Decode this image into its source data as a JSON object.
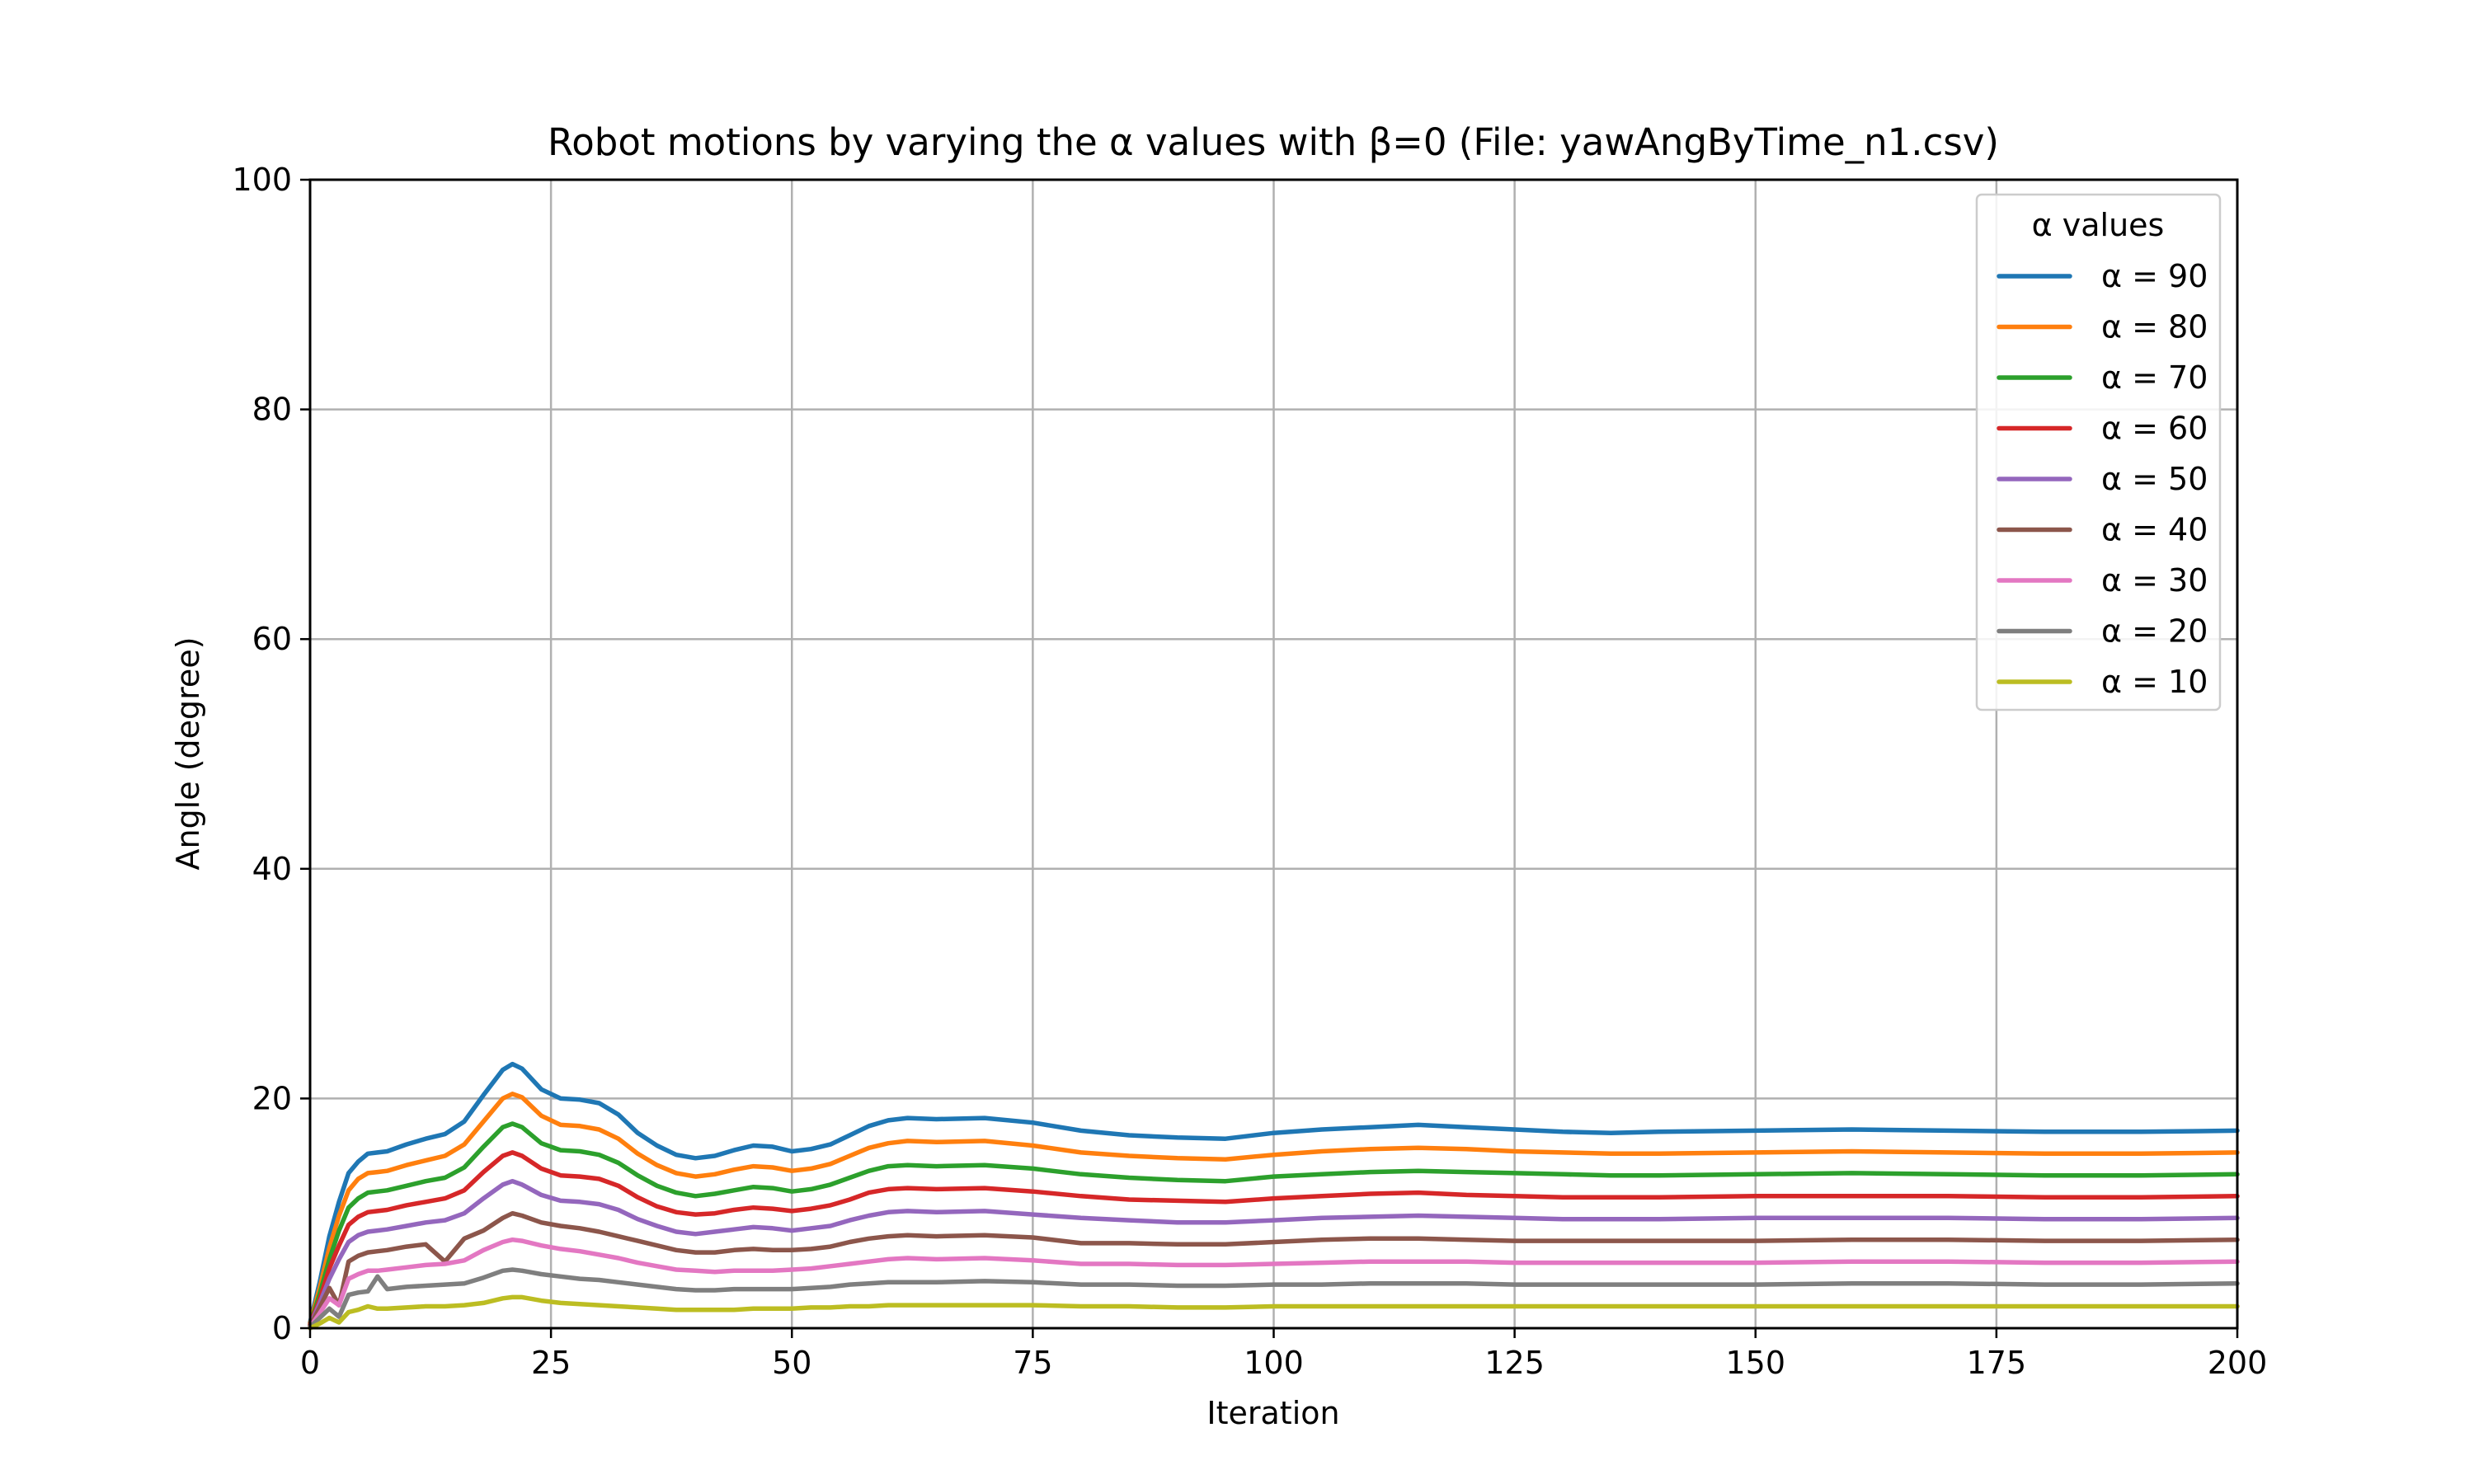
{
  "chart_data": {
    "type": "line",
    "title": "Robot motions by varying the α values with β=0 (File: yawAngByTime_n1.csv)",
    "xlabel": "Iteration",
    "ylabel": "Angle (degree)",
    "xlim": [
      0,
      200
    ],
    "ylim": [
      0,
      100
    ],
    "xticks": [
      0,
      25,
      50,
      75,
      100,
      125,
      150,
      175,
      200
    ],
    "yticks": [
      0,
      20,
      40,
      60,
      80,
      100
    ],
    "grid": true,
    "legend": {
      "title": "α values",
      "placement": "top-right"
    },
    "x": [
      0,
      1,
      2,
      3,
      4,
      5,
      6,
      7,
      8,
      10,
      12,
      14,
      16,
      18,
      20,
      21,
      22,
      24,
      26,
      28,
      30,
      32,
      34,
      36,
      38,
      40,
      42,
      44,
      46,
      48,
      50,
      52,
      54,
      56,
      58,
      60,
      62,
      65,
      70,
      75,
      80,
      85,
      90,
      95,
      100,
      105,
      110,
      115,
      120,
      125,
      130,
      135,
      140,
      150,
      160,
      170,
      180,
      190,
      200
    ],
    "series": [
      {
        "name": "α = 90",
        "color": "#1f77b4",
        "values": [
          0.5,
          4.0,
          8.0,
          11.0,
          13.5,
          14.5,
          15.2,
          15.3,
          15.4,
          16.0,
          16.5,
          16.9,
          18.0,
          20.3,
          22.5,
          23.0,
          22.6,
          20.8,
          20.0,
          19.9,
          19.6,
          18.6,
          17.0,
          15.9,
          15.1,
          14.8,
          15.0,
          15.5,
          15.9,
          15.8,
          15.4,
          15.6,
          16.0,
          16.8,
          17.6,
          18.1,
          18.3,
          18.2,
          18.3,
          17.9,
          17.2,
          16.8,
          16.6,
          16.5,
          17.0,
          17.3,
          17.5,
          17.7,
          17.5,
          17.3,
          17.1,
          17.0,
          17.1,
          17.2,
          17.3,
          17.2,
          17.1,
          17.1,
          17.2
        ]
      },
      {
        "name": "α = 80",
        "color": "#ff7f0e",
        "values": [
          0.4,
          3.5,
          7.0,
          9.8,
          12.0,
          13.0,
          13.5,
          13.6,
          13.7,
          14.2,
          14.6,
          15.0,
          16.0,
          18.0,
          20.0,
          20.4,
          20.1,
          18.5,
          17.7,
          17.6,
          17.3,
          16.5,
          15.2,
          14.2,
          13.5,
          13.2,
          13.4,
          13.8,
          14.1,
          14.0,
          13.7,
          13.9,
          14.3,
          15.0,
          15.7,
          16.1,
          16.3,
          16.2,
          16.3,
          15.9,
          15.3,
          15.0,
          14.8,
          14.7,
          15.1,
          15.4,
          15.6,
          15.7,
          15.6,
          15.4,
          15.3,
          15.2,
          15.2,
          15.3,
          15.4,
          15.3,
          15.2,
          15.2,
          15.3
        ]
      },
      {
        "name": "α = 70",
        "color": "#2ca02c",
        "values": [
          0.3,
          3.0,
          6.0,
          8.5,
          10.5,
          11.3,
          11.8,
          11.9,
          12.0,
          12.4,
          12.8,
          13.1,
          14.0,
          15.8,
          17.5,
          17.8,
          17.5,
          16.1,
          15.5,
          15.4,
          15.1,
          14.4,
          13.3,
          12.4,
          11.8,
          11.5,
          11.7,
          12.0,
          12.3,
          12.2,
          11.9,
          12.1,
          12.5,
          13.1,
          13.7,
          14.1,
          14.2,
          14.1,
          14.2,
          13.9,
          13.4,
          13.1,
          12.9,
          12.8,
          13.2,
          13.4,
          13.6,
          13.7,
          13.6,
          13.5,
          13.4,
          13.3,
          13.3,
          13.4,
          13.5,
          13.4,
          13.3,
          13.3,
          13.4
        ]
      },
      {
        "name": "α = 60",
        "color": "#d62728",
        "values": [
          0.3,
          2.5,
          5.2,
          7.2,
          9.0,
          9.7,
          10.1,
          10.2,
          10.3,
          10.7,
          11.0,
          11.3,
          12.0,
          13.6,
          15.0,
          15.3,
          15.0,
          13.9,
          13.3,
          13.2,
          13.0,
          12.4,
          11.4,
          10.6,
          10.1,
          9.9,
          10.0,
          10.3,
          10.5,
          10.4,
          10.2,
          10.4,
          10.7,
          11.2,
          11.8,
          12.1,
          12.2,
          12.1,
          12.2,
          11.9,
          11.5,
          11.2,
          11.1,
          11.0,
          11.3,
          11.5,
          11.7,
          11.8,
          11.6,
          11.5,
          11.4,
          11.4,
          11.4,
          11.5,
          11.5,
          11.5,
          11.4,
          11.4,
          11.5
        ]
      },
      {
        "name": "α = 50",
        "color": "#9467bd",
        "values": [
          0.2,
          2.2,
          4.3,
          6.0,
          7.5,
          8.1,
          8.4,
          8.5,
          8.6,
          8.9,
          9.2,
          9.4,
          10.0,
          11.3,
          12.5,
          12.8,
          12.5,
          11.6,
          11.1,
          11.0,
          10.8,
          10.3,
          9.5,
          8.9,
          8.4,
          8.2,
          8.4,
          8.6,
          8.8,
          8.7,
          8.5,
          8.7,
          8.9,
          9.4,
          9.8,
          10.1,
          10.2,
          10.1,
          10.2,
          9.9,
          9.6,
          9.4,
          9.2,
          9.2,
          9.4,
          9.6,
          9.7,
          9.8,
          9.7,
          9.6,
          9.5,
          9.5,
          9.5,
          9.6,
          9.6,
          9.6,
          9.5,
          9.5,
          9.6
        ]
      },
      {
        "name": "α = 40",
        "color": "#8c564b",
        "values": [
          0.2,
          1.8,
          3.5,
          2.0,
          5.8,
          6.3,
          6.6,
          6.7,
          6.8,
          7.1,
          7.3,
          5.8,
          7.8,
          8.5,
          9.6,
          10.0,
          9.8,
          9.2,
          8.9,
          8.7,
          8.4,
          8.0,
          7.6,
          7.2,
          6.8,
          6.6,
          6.6,
          6.8,
          6.9,
          6.8,
          6.8,
          6.9,
          7.1,
          7.5,
          7.8,
          8.0,
          8.1,
          8.0,
          8.1,
          7.9,
          7.4,
          7.4,
          7.3,
          7.3,
          7.5,
          7.7,
          7.8,
          7.8,
          7.7,
          7.6,
          7.6,
          7.6,
          7.6,
          7.6,
          7.7,
          7.7,
          7.6,
          7.6,
          7.7
        ]
      },
      {
        "name": "α = 30",
        "color": "#e377c2",
        "values": [
          0.1,
          1.3,
          2.6,
          2.0,
          4.3,
          4.7,
          5.0,
          5.0,
          5.1,
          5.3,
          5.5,
          5.6,
          5.9,
          6.8,
          7.5,
          7.7,
          7.6,
          7.2,
          6.9,
          6.7,
          6.4,
          6.1,
          5.7,
          5.4,
          5.1,
          5.0,
          4.9,
          5.0,
          5.0,
          5.0,
          5.1,
          5.2,
          5.4,
          5.6,
          5.8,
          6.0,
          6.1,
          6.0,
          6.1,
          5.9,
          5.6,
          5.6,
          5.5,
          5.5,
          5.6,
          5.7,
          5.8,
          5.8,
          5.8,
          5.7,
          5.7,
          5.7,
          5.7,
          5.7,
          5.8,
          5.8,
          5.7,
          5.7,
          5.8
        ]
      },
      {
        "name": "α = 20",
        "color": "#7f7f7f",
        "values": [
          0.1,
          0.9,
          1.7,
          1.0,
          2.9,
          3.1,
          3.2,
          4.5,
          3.4,
          3.6,
          3.7,
          3.8,
          3.9,
          4.4,
          5.0,
          5.1,
          5.0,
          4.7,
          4.5,
          4.3,
          4.2,
          4.0,
          3.8,
          3.6,
          3.4,
          3.3,
          3.3,
          3.4,
          3.4,
          3.4,
          3.4,
          3.5,
          3.6,
          3.8,
          3.9,
          4.0,
          4.0,
          4.0,
          4.1,
          4.0,
          3.8,
          3.8,
          3.7,
          3.7,
          3.8,
          3.8,
          3.9,
          3.9,
          3.9,
          3.8,
          3.8,
          3.8,
          3.8,
          3.8,
          3.9,
          3.9,
          3.8,
          3.8,
          3.9
        ]
      },
      {
        "name": "α = 10",
        "color": "#bcbd22",
        "values": [
          0.0,
          0.4,
          0.9,
          0.5,
          1.4,
          1.6,
          1.9,
          1.7,
          1.7,
          1.8,
          1.9,
          1.9,
          2.0,
          2.2,
          2.6,
          2.7,
          2.7,
          2.4,
          2.2,
          2.1,
          2.0,
          1.9,
          1.8,
          1.7,
          1.6,
          1.6,
          1.6,
          1.6,
          1.7,
          1.7,
          1.7,
          1.8,
          1.8,
          1.9,
          1.9,
          2.0,
          2.0,
          2.0,
          2.0,
          2.0,
          1.9,
          1.9,
          1.8,
          1.8,
          1.9,
          1.9,
          1.9,
          1.9,
          1.9,
          1.9,
          1.9,
          1.9,
          1.9,
          1.9,
          1.9,
          1.9,
          1.9,
          1.9,
          1.9
        ]
      }
    ]
  }
}
